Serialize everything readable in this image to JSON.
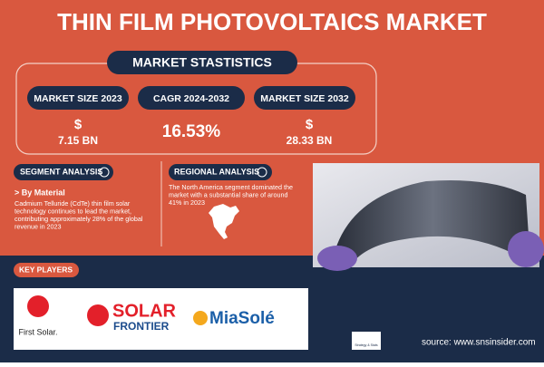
{
  "header": {
    "title": "THIN FILM PHOTOVOLTAICS MARKET"
  },
  "statistics": {
    "title": "MARKET STASTISTICS",
    "items": [
      {
        "label": "MARKET SIZE 2023",
        "prefix": "$",
        "value": "7.15 BN"
      },
      {
        "label": "CAGR 2024-2032",
        "value": "16.53%"
      },
      {
        "label": "MARKET SIZE 2032",
        "prefix": "$",
        "value": "28.33 BN"
      }
    ]
  },
  "segment_analysis": {
    "title": "SEGMENT ANALYSIS",
    "subtitle": "> By Material",
    "lines": [
      "Cadmium Telluride (CdTe) thin film solar",
      "technology continues to lead the market,",
      "contributing approximately 28% of the global",
      "revenue in 2023"
    ]
  },
  "regional_analysis": {
    "title": "REGIONAL ANALYSIS",
    "lines": [
      "The North America segment dominated the",
      "market with a substantial share of around",
      "41% in 2023"
    ]
  },
  "key_players": {
    "title": "KEY PLAYERS",
    "logos": [
      "First Solar.",
      "SOLAR",
      "FRONTIER",
      "MiaSolé"
    ]
  },
  "footer": {
    "brand_tagline": "Strategy & Stats",
    "source": "source: www.snsinsider.com"
  }
}
